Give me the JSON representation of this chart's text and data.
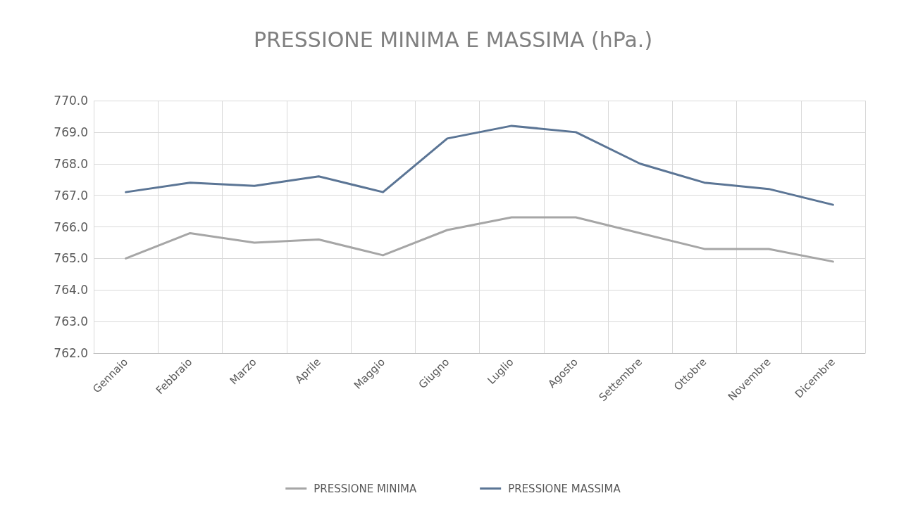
{
  "chart_data": {
    "type": "line",
    "title": "PRESSIONE MINIMA E MASSIMA (hPa.)",
    "categories": [
      "Gennaio",
      "Febbraio",
      "Marzo",
      "Aprile",
      "Maggio",
      "Giugno",
      "Luglio",
      "Agosto",
      "Settembre",
      "Ottobre",
      "Novembre",
      "Dicembre"
    ],
    "series": [
      {
        "name": "PRESSIONE MINIMA",
        "color": "#a6a6a6",
        "values": [
          765.0,
          765.8,
          765.5,
          765.6,
          765.1,
          765.9,
          766.3,
          766.3,
          765.8,
          765.3,
          765.3,
          764.9
        ]
      },
      {
        "name": "PRESSIONE MASSIMA",
        "color": "#5b7595",
        "values": [
          767.1,
          767.4,
          767.3,
          767.6,
          767.1,
          768.8,
          769.2,
          769.0,
          768.0,
          767.4,
          767.2,
          766.7
        ]
      }
    ],
    "ylim": [
      762,
      770
    ],
    "yticks": [
      {
        "value": 762,
        "label": "762.0"
      },
      {
        "value": 763,
        "label": "763.0"
      },
      {
        "value": 764,
        "label": "764.0"
      },
      {
        "value": 765,
        "label": "765.0"
      },
      {
        "value": 766,
        "label": "766.0"
      },
      {
        "value": 767,
        "label": "767.0"
      },
      {
        "value": 768,
        "label": "768.0"
      },
      {
        "value": 769,
        "label": "769.0"
      },
      {
        "value": 770,
        "label": "770.0"
      }
    ],
    "grid": true,
    "legend": "bottom",
    "marker": "none",
    "line_style": "solid"
  }
}
